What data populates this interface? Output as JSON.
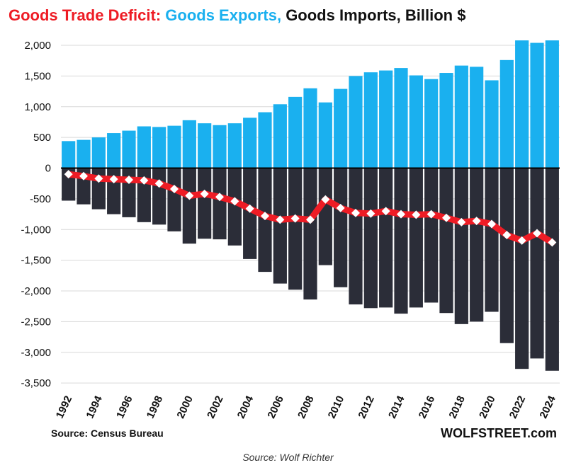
{
  "title_parts": [
    {
      "text": "Goods Trade Deficit: ",
      "color": "#ee1c25"
    },
    {
      "text": "Goods Exports, ",
      "color": "#1ab0ef"
    },
    {
      "text": "Goods Imports, Billion $",
      "color": "#111111"
    }
  ],
  "source_left": "Source: Census Bureau",
  "brand": "WOLFSTREET.com",
  "caption": "Source: Wolf Richter",
  "colors": {
    "exports": "#1ab0ef",
    "imports": "#2b2d38",
    "deficit": "#ee1c25",
    "marker": "#ffffff"
  },
  "chart_data": {
    "type": "bar",
    "title": "Goods Trade Deficit: Goods Exports, Goods Imports, Billion $",
    "xlabel": "",
    "ylabel": "",
    "ylim": [
      -3500,
      2000
    ],
    "yticks": [
      2000,
      1500,
      1000,
      500,
      0,
      -500,
      -1000,
      -1500,
      -2000,
      -2500,
      -3000,
      -3500
    ],
    "ytick_labels": [
      "2,000",
      "1,500",
      "1,000",
      "500",
      "0",
      "-500",
      "-1,000",
      "-1,500",
      "-2,000",
      "-2,500",
      "-3,000",
      "-3,500"
    ],
    "grid": "horizontal",
    "categories": [
      1992,
      1993,
      1994,
      1995,
      1996,
      1997,
      1998,
      1999,
      2000,
      2001,
      2002,
      2003,
      2004,
      2005,
      2006,
      2007,
      2008,
      2009,
      2010,
      2011,
      2012,
      2013,
      2014,
      2015,
      2016,
      2017,
      2018,
      2019,
      2020,
      2021,
      2022,
      2023,
      2024
    ],
    "xtick_labels": [
      "1992",
      "1994",
      "1996",
      "1998",
      "2000",
      "2002",
      "2004",
      "2006",
      "2008",
      "2010",
      "2012",
      "2014",
      "2016",
      "2018",
      "2020",
      "2022",
      "2024"
    ],
    "series": [
      {
        "name": "Goods Exports",
        "kind": "bar",
        "values": [
          440,
          460,
          500,
          570,
          610,
          680,
          670,
          690,
          780,
          730,
          700,
          730,
          820,
          910,
          1040,
          1160,
          1300,
          1070,
          1290,
          1500,
          1560,
          1590,
          1630,
          1510,
          1450,
          1550,
          1670,
          1650,
          1430,
          1760,
          2080,
          2040,
          2080
        ]
      },
      {
        "name": "Goods Imports",
        "kind": "bar",
        "values": [
          -530,
          -590,
          -670,
          -750,
          -800,
          -880,
          -920,
          -1030,
          -1230,
          -1150,
          -1160,
          -1260,
          -1480,
          -1690,
          -1880,
          -1980,
          -2140,
          -1580,
          -1940,
          -2220,
          -2280,
          -2270,
          -2370,
          -2270,
          -2190,
          -2360,
          -2540,
          -2500,
          -2340,
          -2850,
          -3270,
          -3100,
          -3300
        ]
      },
      {
        "name": "Goods Trade Deficit",
        "kind": "line",
        "values": [
          -100,
          -130,
          -170,
          -180,
          -190,
          -200,
          -250,
          -340,
          -450,
          -420,
          -470,
          -540,
          -660,
          -780,
          -840,
          -820,
          -840,
          -510,
          -650,
          -730,
          -740,
          -700,
          -750,
          -760,
          -750,
          -810,
          -880,
          -860,
          -910,
          -1090,
          -1180,
          -1060,
          -1210
        ]
      }
    ]
  }
}
